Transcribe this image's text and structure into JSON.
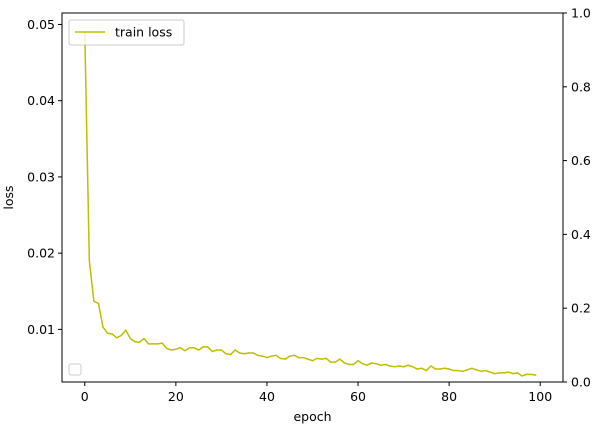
{
  "chart_data": {
    "type": "line",
    "title": "",
    "xlabel": "epoch",
    "ylabel": "loss",
    "xlim": [
      -5,
      105
    ],
    "ylim": [
      0.0031,
      0.0515
    ],
    "y2lim": [
      0.0,
      1.0
    ],
    "xticks": [
      0,
      20,
      40,
      60,
      80,
      100
    ],
    "xtick_labels": [
      "0",
      "20",
      "40",
      "60",
      "80",
      "100"
    ],
    "yticks": [
      0.01,
      0.02,
      0.03,
      0.04,
      0.05
    ],
    "ytick_labels": [
      "0.01",
      "0.02",
      "0.03",
      "0.04",
      "0.05"
    ],
    "y2ticks": [
      0.0,
      0.2,
      0.4,
      0.6,
      0.8,
      1.0
    ],
    "y2tick_labels": [
      "0.0",
      "0.2",
      "0.4",
      "0.6",
      "0.8",
      "1.0"
    ],
    "grid": false,
    "legend_position": "top-left",
    "second_legend_position": "bottom-left",
    "series": [
      {
        "name": "train loss",
        "color": "#bfbf00",
        "x": [
          0,
          1,
          2,
          3,
          4,
          5,
          6,
          7,
          8,
          9,
          10,
          11,
          12,
          13,
          14,
          15,
          16,
          17,
          18,
          19,
          20,
          21,
          22,
          23,
          24,
          25,
          26,
          27,
          28,
          29,
          30,
          31,
          32,
          33,
          34,
          35,
          36,
          37,
          38,
          39,
          40,
          41,
          42,
          43,
          44,
          45,
          46,
          47,
          48,
          49,
          50,
          51,
          52,
          53,
          54,
          55,
          56,
          57,
          58,
          59,
          60,
          61,
          62,
          63,
          64,
          65,
          66,
          67,
          68,
          69,
          70,
          71,
          72,
          73,
          74,
          75,
          76,
          77,
          78,
          79,
          80,
          81,
          82,
          83,
          84,
          85,
          86,
          87,
          88,
          89,
          90,
          91,
          92,
          93,
          94,
          95,
          96,
          97,
          98,
          99
        ],
        "values": [
          0.049,
          0.019,
          0.0137,
          0.0134,
          0.0103,
          0.0095,
          0.0094,
          0.0089,
          0.0092,
          0.0099,
          0.0088,
          0.0084,
          0.0083,
          0.0088,
          0.0081,
          0.0081,
          0.0081,
          0.0082,
          0.0075,
          0.0073,
          0.0074,
          0.0076,
          0.0072,
          0.0076,
          0.0076,
          0.0073,
          0.0077,
          0.0077,
          0.0071,
          0.0073,
          0.0073,
          0.0068,
          0.0067,
          0.0073,
          0.0069,
          0.0068,
          0.0069,
          0.0069,
          0.0066,
          0.0065,
          0.0063,
          0.0065,
          0.0066,
          0.0062,
          0.0061,
          0.0065,
          0.0066,
          0.0063,
          0.0063,
          0.0061,
          0.0059,
          0.0062,
          0.0061,
          0.0062,
          0.0057,
          0.0057,
          0.0061,
          0.0056,
          0.0054,
          0.0054,
          0.0059,
          0.0055,
          0.0053,
          0.0056,
          0.0055,
          0.0053,
          0.0054,
          0.0052,
          0.0051,
          0.0052,
          0.0051,
          0.0053,
          0.0051,
          0.0048,
          0.0049,
          0.0046,
          0.0052,
          0.0048,
          0.0048,
          0.0049,
          0.0048,
          0.0046,
          0.0046,
          0.0045,
          0.0047,
          0.0049,
          0.0047,
          0.0045,
          0.0046,
          0.0044,
          0.0042,
          0.0043,
          0.0043,
          0.0044,
          0.0042,
          0.0043,
          0.0039,
          0.0041,
          0.0041,
          0.004
        ]
      }
    ]
  }
}
